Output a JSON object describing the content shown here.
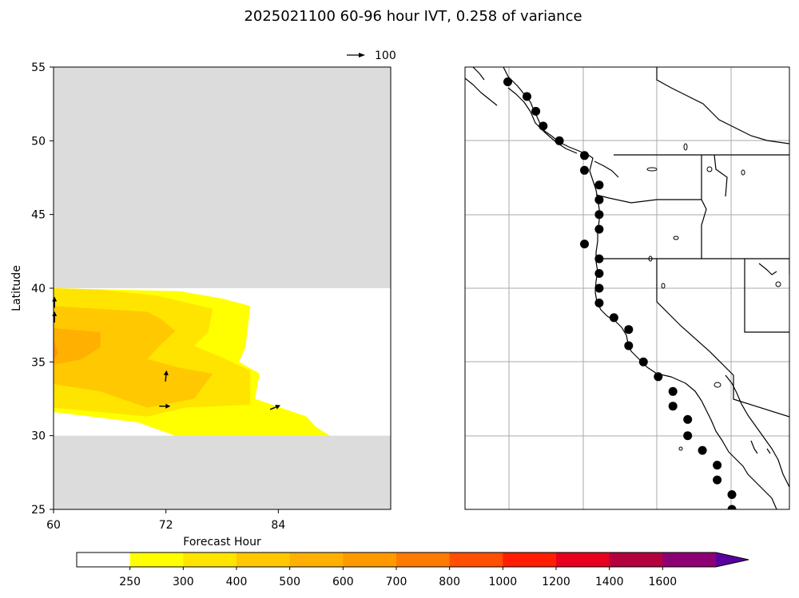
{
  "title": "2025021100 60-96 hour IVT, 0.258 of variance",
  "quiver_key_label": "100",
  "chart_data": [
    {
      "type": "contour",
      "xlabel": "Forecast Hour",
      "ylabel": "Latitude",
      "xlim": [
        60,
        96
      ],
      "ylim": [
        25,
        55
      ],
      "x_ticks": [
        60,
        72,
        84
      ],
      "y_ticks": [
        25,
        30,
        35,
        40,
        45,
        50,
        55
      ],
      "masked_regions": [
        {
          "lat_min": 40,
          "lat_max": 55,
          "color": "#dcdcdc"
        },
        {
          "lat_min": 25,
          "lat_max": 30,
          "color": "#dcdcdc"
        }
      ],
      "contour_fills": [
        {
          "level": 250,
          "color": "#ffff00",
          "points": [
            [
              60,
              40
            ],
            [
              73.5,
              39.8
            ],
            [
              78,
              39.3
            ],
            [
              81,
              38.8
            ],
            [
              80.5,
              36
            ],
            [
              79.8,
              35
            ],
            [
              82,
              34.2
            ],
            [
              81.5,
              32.5
            ],
            [
              87,
              31.3
            ],
            [
              88,
              30.6
            ],
            [
              89.5,
              30
            ],
            [
              73,
              30
            ],
            [
              69,
              30.9
            ],
            [
              64,
              31.3
            ],
            [
              60,
              31.6
            ]
          ]
        },
        {
          "level": 300,
          "color": "#ffe400",
          "points": [
            [
              60,
              40
            ],
            [
              65,
              39.9
            ],
            [
              71,
              39.5
            ],
            [
              77,
              38.6
            ],
            [
              76.5,
              37
            ],
            [
              75,
              36.1
            ],
            [
              78,
              35.3
            ],
            [
              81,
              34.4
            ],
            [
              81,
              32.1
            ],
            [
              74,
              31.9
            ],
            [
              70,
              31.3
            ],
            [
              65,
              31.6
            ],
            [
              60,
              31.9
            ]
          ]
        },
        {
          "level": 400,
          "color": "#ffc800",
          "points": [
            [
              60,
              38.8
            ],
            [
              65,
              38.6
            ],
            [
              70,
              38.4
            ],
            [
              71.5,
              37.9
            ],
            [
              73,
              37.1
            ],
            [
              71.5,
              36.2
            ],
            [
              70,
              35.2
            ],
            [
              73.5,
              34.6
            ],
            [
              77,
              34.2
            ],
            [
              75,
              32.5
            ],
            [
              70,
              31.9
            ],
            [
              65,
              33
            ],
            [
              60,
              33.5
            ]
          ]
        },
        {
          "level": 500,
          "color": "#ffb000",
          "points": [
            [
              60,
              37.3
            ],
            [
              65,
              37
            ],
            [
              65,
              36
            ],
            [
              63,
              35.2
            ],
            [
              60,
              34.8
            ]
          ]
        },
        {
          "level": 600,
          "color": "#ff9900",
          "points": [
            [
              60,
              36.5
            ],
            [
              60.5,
              35.6
            ],
            [
              60,
              35.2
            ]
          ]
        }
      ],
      "vectors": [
        {
          "x": 60.1,
          "y": 39.0,
          "u": 0,
          "v": 1
        },
        {
          "x": 60.1,
          "y": 38.0,
          "u": 0,
          "v": 1
        },
        {
          "x": 72.0,
          "y": 34.0,
          "u": 0.1,
          "v": 1
        },
        {
          "x": 71.8,
          "y": 32.0,
          "u": 1,
          "v": 0
        },
        {
          "x": 83.6,
          "y": 31.9,
          "u": 1,
          "v": 0.4
        }
      ]
    },
    {
      "type": "map",
      "region": "US West Coast",
      "lon_range": [
        -135,
        -113
      ],
      "lat_range": [
        25,
        55
      ],
      "gridlines": true,
      "station_markers": [
        [
          -132.1,
          54
        ],
        [
          -130.8,
          53
        ],
        [
          -130.2,
          52
        ],
        [
          -129.7,
          51
        ],
        [
          -128.6,
          50
        ],
        [
          -126.9,
          49
        ],
        [
          -126.9,
          48
        ],
        [
          -125.9,
          47
        ],
        [
          -125.9,
          46
        ],
        [
          -125.9,
          45
        ],
        [
          -125.9,
          44
        ],
        [
          -126.9,
          43
        ],
        [
          -125.9,
          42
        ],
        [
          -125.9,
          41
        ],
        [
          -125.9,
          40
        ],
        [
          -125.9,
          39
        ],
        [
          -124.9,
          38
        ],
        [
          -123.9,
          37.2
        ],
        [
          -123.9,
          36.1
        ],
        [
          -122.9,
          35
        ],
        [
          -121.9,
          34
        ],
        [
          -120.9,
          33
        ],
        [
          -120.9,
          32
        ],
        [
          -119.9,
          31.1
        ],
        [
          -119.9,
          30
        ],
        [
          -118.9,
          29
        ],
        [
          -117.9,
          28
        ],
        [
          -117.9,
          27
        ],
        [
          -116.9,
          26
        ],
        [
          -116.9,
          25
        ]
      ],
      "marker_color": "#000000"
    },
    {
      "type": "colorbar",
      "orientation": "horizontal",
      "extend": "max",
      "levels": [
        250,
        300,
        400,
        500,
        600,
        700,
        800,
        1000,
        1200,
        1400,
        1600
      ],
      "colors": [
        "#ffffff",
        "#ffff00",
        "#ffe400",
        "#ffc800",
        "#ffb000",
        "#ff9900",
        "#ff7a00",
        "#ff4f00",
        "#ff1e00",
        "#e6001e",
        "#b3003f",
        "#8c0073",
        "#5a00a0"
      ]
    }
  ]
}
